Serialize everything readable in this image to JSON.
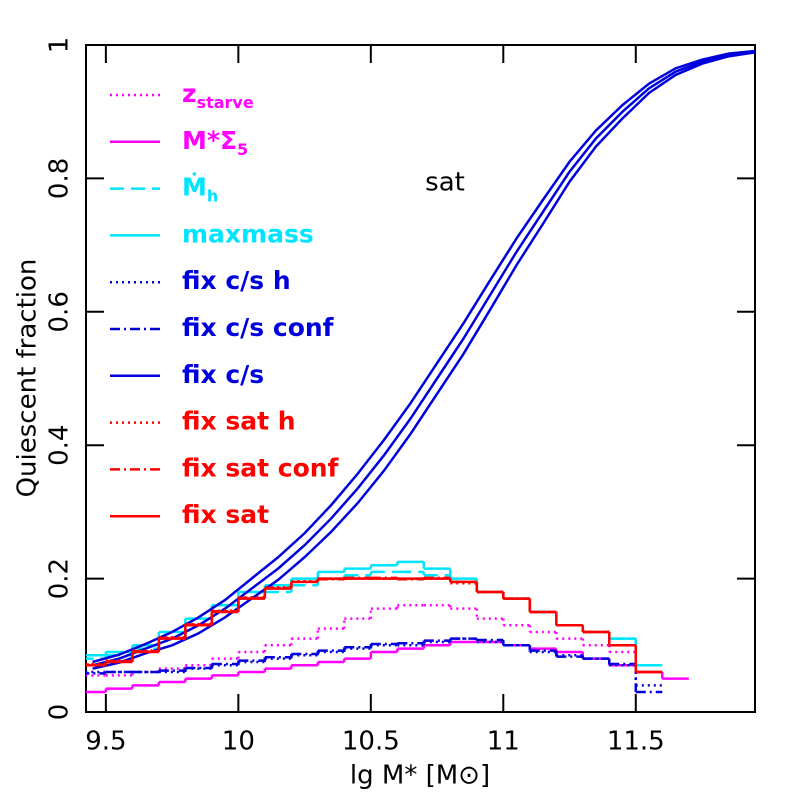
{
  "chart_data": {
    "type": "line",
    "ylabel": "Quiescent fraction",
    "xlabel": "lg M* [M⊙]",
    "annotation": "sat",
    "xlim": [
      9.425,
      11.95
    ],
    "ylim": [
      0,
      1
    ],
    "xticks": [
      9.5,
      10,
      10.5,
      11,
      11.5
    ],
    "yticks": [
      0,
      0.2,
      0.4,
      0.6,
      0.8,
      1
    ],
    "series": [
      {
        "name": "z",
        "subscript": "starve",
        "color": "#ff00ff",
        "dash": "dotted",
        "shape": "step",
        "x": [
          9.45,
          9.55,
          9.65,
          9.75,
          9.85,
          9.95,
          10.05,
          10.15,
          10.25,
          10.35,
          10.45,
          10.55,
          10.65,
          10.75,
          10.85,
          10.95,
          11.05,
          11.15,
          11.25,
          11.35,
          11.45,
          11.55,
          11.65
        ],
        "values": [
          0.055,
          0.055,
          0.06,
          0.065,
          0.07,
          0.08,
          0.09,
          0.1,
          0.11,
          0.125,
          0.14,
          0.155,
          0.16,
          0.16,
          0.155,
          0.14,
          0.13,
          0.12,
          0.11,
          0.1,
          0.09,
          0.06,
          null
        ]
      },
      {
        "name": "M*Σ",
        "subscript": "5",
        "color": "#ff00ff",
        "dash": "solid",
        "shape": "step",
        "x": [
          9.45,
          9.55,
          9.65,
          9.75,
          9.85,
          9.95,
          10.05,
          10.15,
          10.25,
          10.35,
          10.45,
          10.55,
          10.65,
          10.75,
          10.85,
          10.95,
          11.05,
          11.15,
          11.25,
          11.35,
          11.45,
          11.55,
          11.65
        ],
        "values": [
          0.03,
          0.035,
          0.04,
          0.045,
          0.05,
          0.055,
          0.06,
          0.065,
          0.07,
          0.075,
          0.08,
          0.09,
          0.095,
          0.1,
          0.105,
          0.105,
          0.1,
          0.095,
          0.09,
          0.08,
          0.07,
          0.06,
          0.05
        ]
      },
      {
        "name": "Ṁ",
        "subscript": "h",
        "color": "#00e5ff",
        "dash": "dashed",
        "shape": "step",
        "x": [
          9.45,
          9.55,
          9.65,
          9.75,
          9.85,
          9.95,
          10.05,
          10.15,
          10.25,
          10.35,
          10.45,
          10.55,
          10.65,
          10.75,
          10.85,
          10.95,
          11.05,
          11.15,
          11.25,
          11.35,
          11.45,
          11.55,
          11.65
        ],
        "values": [
          0.08,
          0.085,
          0.095,
          0.11,
          0.13,
          0.15,
          0.17,
          0.18,
          0.19,
          0.2,
          0.205,
          0.21,
          0.21,
          0.205,
          0.195,
          0.18,
          0.17,
          0.15,
          0.13,
          0.12,
          0.11,
          0.06,
          null
        ]
      },
      {
        "name": "maxmass",
        "color": "#00e5ff",
        "dash": "solid",
        "shape": "step",
        "x": [
          9.45,
          9.55,
          9.65,
          9.75,
          9.85,
          9.95,
          10.05,
          10.15,
          10.25,
          10.35,
          10.45,
          10.55,
          10.65,
          10.75,
          10.85,
          10.95,
          11.05,
          11.15,
          11.25,
          11.35,
          11.45,
          11.55,
          11.65
        ],
        "values": [
          0.085,
          0.09,
          0.1,
          0.12,
          0.14,
          0.16,
          0.18,
          0.19,
          0.2,
          0.21,
          0.215,
          0.22,
          0.225,
          0.215,
          0.2,
          0.18,
          0.17,
          0.15,
          0.13,
          0.12,
          0.11,
          0.07,
          null
        ]
      },
      {
        "name": "fix c/s h",
        "color": "#0000dd",
        "dash": "dotted",
        "shape": "step",
        "x": [
          9.45,
          9.55,
          9.65,
          9.75,
          9.85,
          9.95,
          10.05,
          10.15,
          10.25,
          10.35,
          10.45,
          10.55,
          10.65,
          10.75,
          10.85,
          10.95,
          11.05,
          11.15,
          11.25,
          11.35,
          11.45,
          11.55,
          11.65
        ],
        "values": [
          0.06,
          0.06,
          0.06,
          0.06,
          0.065,
          0.07,
          0.075,
          0.08,
          0.085,
          0.09,
          0.095,
          0.1,
          0.1,
          0.105,
          0.11,
          0.105,
          0.1,
          0.09,
          0.085,
          0.08,
          0.07,
          0.04,
          null
        ]
      },
      {
        "name": "fix c/s conf",
        "color": "#0000dd",
        "dash": "dashdot",
        "shape": "step",
        "x": [
          9.45,
          9.55,
          9.65,
          9.75,
          9.85,
          9.95,
          10.05,
          10.15,
          10.25,
          10.35,
          10.45,
          10.55,
          10.65,
          10.75,
          10.85,
          10.95,
          11.05,
          11.15,
          11.25,
          11.35,
          11.45,
          11.55,
          11.65
        ],
        "values": [
          0.058,
          0.06,
          0.06,
          0.062,
          0.066,
          0.072,
          0.077,
          0.082,
          0.087,
          0.092,
          0.097,
          0.102,
          0.103,
          0.107,
          0.11,
          0.108,
          0.1,
          0.092,
          0.083,
          0.08,
          0.072,
          0.03,
          null
        ]
      },
      {
        "name": "fix c/s",
        "color": "#0000dd",
        "dash": "solid",
        "shape": "curve",
        "x": [
          9.45,
          9.55,
          9.65,
          9.75,
          9.85,
          9.95,
          10.05,
          10.15,
          10.25,
          10.35,
          10.45,
          10.55,
          10.65,
          10.75,
          10.85,
          10.95,
          11.05,
          11.15,
          11.25,
          11.35,
          11.45,
          11.55,
          11.65,
          11.75,
          11.85,
          11.95
        ],
        "values": [
          0.07,
          0.08,
          0.095,
          0.11,
          0.13,
          0.155,
          0.185,
          0.215,
          0.25,
          0.29,
          0.335,
          0.385,
          0.44,
          0.5,
          0.56,
          0.625,
          0.69,
          0.75,
          0.81,
          0.86,
          0.9,
          0.935,
          0.96,
          0.975,
          0.985,
          0.99
        ],
        "upper": [
          0.075,
          0.086,
          0.102,
          0.12,
          0.142,
          0.168,
          0.2,
          0.232,
          0.268,
          0.31,
          0.357,
          0.408,
          0.463,
          0.523,
          0.583,
          0.647,
          0.71,
          0.768,
          0.825,
          0.872,
          0.91,
          0.942,
          0.965,
          0.978,
          0.987,
          0.991
        ],
        "lower": [
          0.065,
          0.074,
          0.088,
          0.1,
          0.118,
          0.142,
          0.17,
          0.198,
          0.232,
          0.27,
          0.313,
          0.362,
          0.417,
          0.477,
          0.537,
          0.603,
          0.67,
          0.732,
          0.795,
          0.848,
          0.89,
          0.928,
          0.955,
          0.972,
          0.983,
          0.989
        ]
      },
      {
        "name": "fix sat h",
        "color": "#ff0000",
        "dash": "dotted",
        "shape": "step",
        "x": [
          9.45,
          9.55,
          9.65,
          9.75,
          9.85,
          9.95,
          10.05,
          10.15,
          10.25,
          10.35,
          10.45,
          10.55,
          10.65,
          10.75,
          10.85,
          10.95,
          11.05,
          11.15,
          11.25,
          11.35,
          11.45,
          11.55,
          11.65
        ],
        "values": [
          0.072,
          0.077,
          0.092,
          0.112,
          0.132,
          0.152,
          0.172,
          0.187,
          0.196,
          0.2,
          0.2,
          0.2,
          0.2,
          0.2,
          0.193,
          0.18,
          0.17,
          0.15,
          0.13,
          0.12,
          0.1,
          0.06,
          null
        ]
      },
      {
        "name": "fix sat conf",
        "color": "#ff0000",
        "dash": "dashdot",
        "shape": "step",
        "x": [
          9.45,
          9.55,
          9.65,
          9.75,
          9.85,
          9.95,
          10.05,
          10.15,
          10.25,
          10.35,
          10.45,
          10.55,
          10.65,
          10.75,
          10.85,
          10.95,
          11.05,
          11.15,
          11.25,
          11.35,
          11.45,
          11.55,
          11.65
        ],
        "values": [
          0.071,
          0.076,
          0.091,
          0.111,
          0.131,
          0.151,
          0.171,
          0.186,
          0.195,
          0.199,
          0.201,
          0.201,
          0.199,
          0.201,
          0.195,
          0.18,
          0.17,
          0.15,
          0.13,
          0.12,
          0.1,
          0.06,
          null
        ]
      },
      {
        "name": "fix sat",
        "color": "#ff0000",
        "dash": "solid",
        "shape": "step",
        "x": [
          9.45,
          9.55,
          9.65,
          9.75,
          9.85,
          9.95,
          10.05,
          10.15,
          10.25,
          10.35,
          10.45,
          10.55,
          10.65,
          10.75,
          10.85,
          10.95,
          11.05,
          11.15,
          11.25,
          11.35,
          11.45,
          11.55,
          11.65
        ],
        "values": [
          0.07,
          0.075,
          0.09,
          0.11,
          0.13,
          0.15,
          0.17,
          0.185,
          0.195,
          0.2,
          0.2,
          0.2,
          0.2,
          0.2,
          0.195,
          0.18,
          0.17,
          0.15,
          0.13,
          0.12,
          0.1,
          0.06,
          null
        ]
      }
    ]
  }
}
